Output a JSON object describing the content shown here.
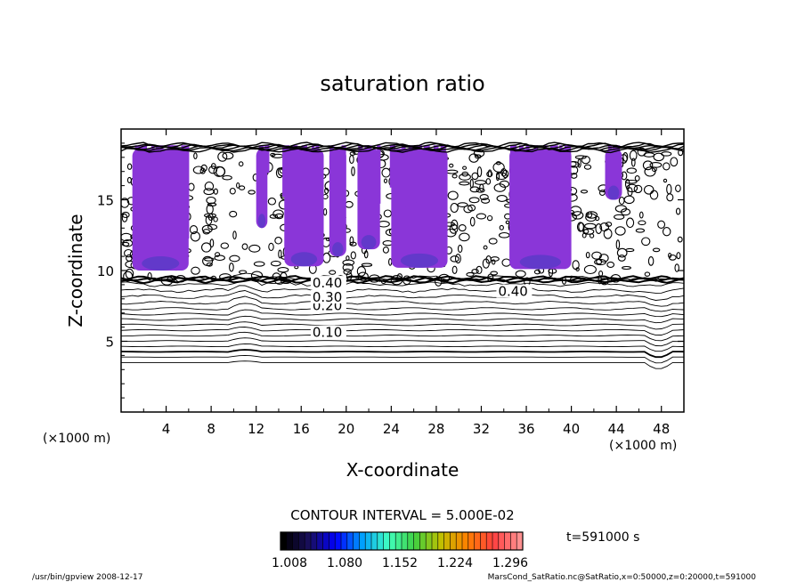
{
  "chart_data": {
    "type": "contour",
    "title": "saturation ratio",
    "xlabel": "X-coordinate",
    "ylabel": "Z-coordinate",
    "x_unit_left": "(×1000 m)",
    "x_unit_right": "(×1000 m)",
    "xlim": [
      0,
      50
    ],
    "ylim": [
      0,
      20
    ],
    "x_ticks": [
      4,
      8,
      12,
      16,
      20,
      24,
      28,
      32,
      36,
      40,
      44,
      48
    ],
    "y_ticks": [
      5,
      10,
      15
    ],
    "contour_interval_text": "CONTOUR INTERVAL = 5.000E-02",
    "contour_labels": [
      {
        "text": "0.10",
        "x": 17,
        "z": 5.3
      },
      {
        "text": "0.20",
        "x": 17,
        "z": 7.2
      },
      {
        "text": "0.30",
        "x": 17,
        "z": 7.8
      },
      {
        "text": "0.40",
        "x": 17,
        "z": 8.8
      },
      {
        "text": "0.40",
        "x": 33.5,
        "z": 8.2
      }
    ],
    "colorbar": {
      "tick_labels": [
        "1.008",
        "1.080",
        "1.152",
        "1.224",
        "1.296"
      ],
      "colors": [
        "#000000",
        "#1a0f60",
        "#0000ff",
        "#00a0ff",
        "#40ffc0",
        "#40d040",
        "#c0c000",
        "#ff8000",
        "#ff4040",
        "#ff9090"
      ]
    },
    "shaded_color": "#8a36d8",
    "shaded_dark": "#5a3ac8",
    "supersaturated_columns": [
      {
        "x": [
          1,
          6
        ],
        "z": [
          10,
          18.6
        ]
      },
      {
        "x": [
          12,
          13
        ],
        "z": [
          13,
          18.6
        ]
      },
      {
        "x": [
          14.5,
          18
        ],
        "z": [
          10.3,
          18.6
        ]
      },
      {
        "x": [
          18.5,
          20
        ],
        "z": [
          11,
          18.6
        ]
      },
      {
        "x": [
          21,
          23
        ],
        "z": [
          11.5,
          18.6
        ]
      },
      {
        "x": [
          24,
          29
        ],
        "z": [
          10.2,
          18.6
        ]
      },
      {
        "x": [
          34.5,
          40
        ],
        "z": [
          10.1,
          18.6
        ]
      },
      {
        "x": [
          43,
          44.5
        ],
        "z": [
          15,
          18.6
        ]
      }
    ],
    "time_label": "t=591000 s"
  },
  "footer": {
    "left": "/usr/bin/gpview   2008-12-17",
    "right": "MarsCond_SatRatio.nc@SatRatio,x=0:50000,z=0:20000,t=591000"
  }
}
